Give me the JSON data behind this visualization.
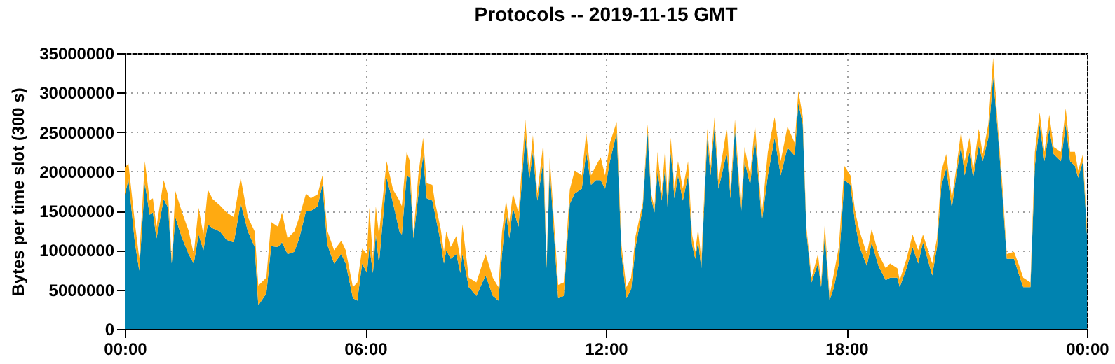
{
  "chart_data": {
    "type": "area",
    "title": "Protocols -- 2019-11-15 GMT",
    "ylabel": "Bytes per time slot (300 s)",
    "stacked": true,
    "grid": true,
    "xlim": [
      0,
      24
    ],
    "xticks": [
      {
        "value": 0,
        "label": "00:00"
      },
      {
        "value": 6,
        "label": "06:00"
      },
      {
        "value": 12,
        "label": "12:00"
      },
      {
        "value": 18,
        "label": "18:00"
      },
      {
        "value": 24,
        "label": "00:00"
      }
    ],
    "ylim": [
      0,
      35000000
    ],
    "yticks": [
      0,
      5000000,
      10000000,
      15000000,
      20000000,
      25000000,
      30000000,
      35000000
    ],
    "x": [
      0,
      0.09,
      0.25,
      0.36,
      0.5,
      0.62,
      0.7,
      0.79,
      0.97,
      1.08,
      1.17,
      1.26,
      1.43,
      1.59,
      1.72,
      1.84,
      1.96,
      2.07,
      2.19,
      2.37,
      2.54,
      2.72,
      2.89,
      3.07,
      3.24,
      3.33,
      3.53,
      3.65,
      3.82,
      3.92,
      4.06,
      4.23,
      4.35,
      4.52,
      4.64,
      4.81,
      4.93,
      5.05,
      5.22,
      5.4,
      5.51,
      5.69,
      5.8,
      5.92,
      6.04,
      6.1,
      6.19,
      6.26,
      6.34,
      6.53,
      6.69,
      6.85,
      6.91,
      7.03,
      7.11,
      7.2,
      7.32,
      7.44,
      7.53,
      7.67,
      7.73,
      7.88,
      7.96,
      8.02,
      8.13,
      8.27,
      8.37,
      8.42,
      8.58,
      8.77,
      9,
      9.18,
      9.32,
      9.41,
      9.51,
      9.59,
      9.68,
      9.82,
      9.99,
      10.09,
      10.18,
      10.29,
      10.44,
      10.52,
      10.6,
      10.81,
      10.95,
      11.1,
      11.22,
      11.4,
      11.51,
      11.63,
      11.75,
      11.87,
      11.98,
      12.1,
      12.27,
      12.39,
      12.51,
      12.63,
      12.74,
      12.92,
      13.04,
      13.13,
      13.21,
      13.29,
      13.39,
      13.48,
      13.54,
      13.62,
      13.71,
      13.8,
      13.92,
      14.05,
      14.15,
      14.23,
      14.3,
      14.38,
      14.53,
      14.61,
      14.71,
      14.81,
      15.02,
      15.11,
      15.22,
      15.37,
      15.46,
      15.6,
      15.72,
      15.89,
      16.04,
      16.21,
      16.36,
      16.53,
      16.71,
      16.8,
      16.91,
      17,
      17.13,
      17.29,
      17.37,
      17.46,
      17.58,
      17.69,
      17.81,
      17.95,
      18.1,
      18.22,
      18.33,
      18.51,
      18.63,
      18.8,
      18.98,
      19.09,
      19.27,
      19.33,
      19.5,
      19.65,
      19.79,
      19.91,
      20.14,
      20.26,
      20.37,
      20.49,
      20.63,
      20.74,
      20.86,
      20.95,
      21.07,
      21.16,
      21.3,
      21.4,
      21.54,
      21.66,
      21.77,
      21.89,
      22,
      22.18,
      22.29,
      22.41,
      22.59,
      22.7,
      22.82,
      22.94,
      23.06,
      23.17,
      23.35,
      23.47,
      23.58,
      23.7,
      23.78,
      23.9,
      24
    ],
    "series": [
      {
        "color": "#0083b0",
        "values": [
          17000000,
          19000000,
          11000000,
          7400000,
          18500000,
          14500000,
          14800000,
          11500000,
          16500000,
          15400000,
          8300000,
          14200000,
          11500000,
          9500000,
          8300000,
          12000000,
          10000000,
          13300000,
          12800000,
          12400000,
          11300000,
          11000000,
          16000000,
          12400000,
          10400000,
          3000000,
          4500000,
          10500000,
          10400000,
          11000000,
          9500000,
          9800000,
          11500000,
          15000000,
          15000000,
          15600000,
          18300000,
          10700000,
          8300000,
          9500000,
          8300000,
          3900000,
          3600000,
          8300000,
          7100000,
          10400000,
          7100000,
          12000000,
          8300000,
          19200000,
          16000000,
          12400000,
          12000000,
          19500000,
          19200000,
          11500000,
          17000000,
          22000000,
          16600000,
          16300000,
          14800000,
          11000000,
          8300000,
          10000000,
          8900000,
          9500000,
          7100000,
          9500000,
          5300000,
          4200000,
          6800000,
          4200000,
          3600000,
          9500000,
          14800000,
          11500000,
          15400000,
          13000000,
          24600000,
          19000000,
          22500000,
          16300000,
          21300000,
          7700000,
          20400000,
          3900000,
          4200000,
          15900000,
          17200000,
          17800000,
          22500000,
          18300000,
          18900000,
          18900000,
          17800000,
          21300000,
          24900000,
          9500000,
          3900000,
          5000000,
          10400000,
          15400000,
          25000000,
          16600000,
          14800000,
          20100000,
          16300000,
          20700000,
          15400000,
          22500000,
          16600000,
          19500000,
          16300000,
          19500000,
          10700000,
          8900000,
          11200000,
          7700000,
          24300000,
          19500000,
          25700000,
          17800000,
          22500000,
          16600000,
          25400000,
          14500000,
          21300000,
          18300000,
          24300000,
          13600000,
          19500000,
          24300000,
          19500000,
          23000000,
          22000000,
          28700000,
          26000000,
          12400000,
          5900000,
          8300000,
          5300000,
          12000000,
          3600000,
          5300000,
          8300000,
          18900000,
          18300000,
          13300000,
          10400000,
          8000000,
          11000000,
          8000000,
          6200000,
          6500000,
          6500000,
          5300000,
          7700000,
          10400000,
          8300000,
          11000000,
          6800000,
          10400000,
          18300000,
          20400000,
          15400000,
          19500000,
          23300000,
          19500000,
          22500000,
          19200000,
          23300000,
          21300000,
          24300000,
          32000000,
          25400000,
          17200000,
          8900000,
          8900000,
          7100000,
          5300000,
          5300000,
          20700000,
          26000000,
          21300000,
          25400000,
          22200000,
          21300000,
          26000000,
          21300000,
          20700000,
          19200000,
          21300000,
          12000000
        ]
      },
      {
        "color": "#ffaa11",
        "values": [
          3500000,
          2000000,
          2500000,
          1600000,
          2800000,
          1800000,
          1800000,
          1500000,
          2400000,
          1600000,
          600000,
          3300000,
          3300000,
          3000000,
          1200000,
          3400000,
          2000000,
          4400000,
          3700000,
          3300000,
          3500000,
          3200000,
          3200000,
          1800000,
          2000000,
          2500000,
          2000000,
          3100000,
          2600000,
          3800000,
          2000000,
          2600000,
          2700000,
          2200000,
          1600000,
          1500000,
          1200000,
          1800000,
          1700000,
          1700000,
          1700000,
          1400000,
          2300000,
          1900000,
          2400000,
          5000000,
          1800000,
          3600000,
          3700000,
          2100000,
          1700000,
          3900000,
          3600000,
          3000000,
          2100000,
          500000,
          2500000,
          2300000,
          1900000,
          2000000,
          1500000,
          1700000,
          1500000,
          2400000,
          1500000,
          2300000,
          1800000,
          3800000,
          1200000,
          1700000,
          2700000,
          2300000,
          1700000,
          2900000,
          1500000,
          2000000,
          1800000,
          1800000,
          2000000,
          1000000,
          2100000,
          900000,
          2300000,
          600000,
          1400000,
          1700000,
          1700000,
          1800000,
          2900000,
          1700000,
          2400000,
          1200000,
          1800000,
          2900000,
          1700000,
          2300000,
          1400000,
          1100000,
          1400000,
          1500000,
          1400000,
          600000,
          1000000,
          600000,
          600000,
          2400000,
          900000,
          2300000,
          900000,
          1800000,
          1200000,
          1800000,
          1500000,
          1800000,
          1300000,
          900000,
          1500000,
          1200000,
          1100000,
          1200000,
          1200000,
          1100000,
          3200000,
          900000,
          1200000,
          900000,
          1800000,
          1200000,
          1700000,
          900000,
          3000000,
          2600000,
          1800000,
          2700000,
          1600000,
          1500000,
          1000000,
          600000,
          600000,
          1200000,
          600000,
          1300000,
          600000,
          1800000,
          2100000,
          1800000,
          1200000,
          1500000,
          2000000,
          1500000,
          1700000,
          1500000,
          1500000,
          1800000,
          1200000,
          900000,
          1200000,
          1600000,
          1700000,
          1000000,
          1500000,
          1100000,
          1800000,
          1800000,
          1200000,
          900000,
          1800000,
          1800000,
          1800000,
          900000,
          2100000,
          900000,
          1700000,
          2400000,
          900000,
          1100000,
          600000,
          900000,
          1200000,
          1200000,
          600000,
          1800000,
          1500000,
          1200000,
          1800000,
          900000,
          1200000,
          2000000,
          1200000,
          1800000,
          900000,
          900000,
          1000000
        ]
      }
    ]
  }
}
